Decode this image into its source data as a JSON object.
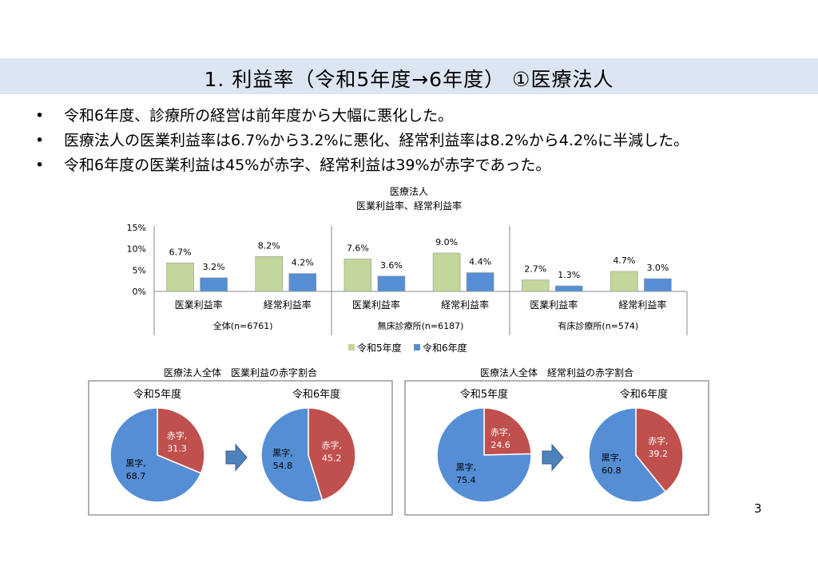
{
  "title": "1. 利益率（令和5年度→6年度） ①医療法人",
  "bullets": [
    "令和6年度、診療所の経営は前年度から大幅に悪化した。",
    "医療法人の医業利益率は6.7%から3.2%に悪化、経常利益率は8.2%から4.2%に半減した。",
    "令和6年度の医業利益は45%が赤字、経常利益は39%が赤字であった。"
  ],
  "page_number": "3",
  "colors": {
    "r5": "#c3d69b",
    "r6": "#558ed5",
    "red": "#c0504d",
    "blue": "#558ed5",
    "band": "#dce6f2"
  },
  "chart_data": [
    {
      "type": "bar",
      "title": "医療法人",
      "subtitle": "医業利益率、経常利益率",
      "ylim": [
        0,
        15
      ],
      "yticks": [
        "0%",
        "5%",
        "10%",
        "15%"
      ],
      "legend_position": "bottom",
      "groups": [
        "全体(n=6761)",
        "無床診療所(n=6187)",
        "有床診療所(n=574)"
      ],
      "categories": [
        "医業利益率",
        "経常利益率",
        "医業利益率",
        "経常利益率",
        "医業利益率",
        "経常利益率"
      ],
      "series": [
        {
          "name": "令和5年度",
          "values": [
            6.7,
            8.2,
            7.6,
            9.0,
            2.7,
            4.7
          ]
        },
        {
          "name": "令和6年度",
          "values": [
            3.2,
            4.2,
            3.6,
            4.4,
            1.3,
            3.0
          ]
        }
      ]
    },
    {
      "type": "pie",
      "title": "医療法人全体　医業利益の赤字割合",
      "pies": [
        {
          "label": "令和5年度",
          "slices": [
            {
              "name": "赤字",
              "value": 31.3
            },
            {
              "name": "黒字",
              "value": 68.7
            }
          ]
        },
        {
          "label": "令和6年度",
          "slices": [
            {
              "name": "赤字",
              "value": 45.2
            },
            {
              "name": "黒字",
              "value": 54.8
            }
          ]
        }
      ]
    },
    {
      "type": "pie",
      "title": "医療法人全体　経常利益の赤字割合",
      "pies": [
        {
          "label": "令和5年度",
          "slices": [
            {
              "name": "赤字",
              "value": 24.6
            },
            {
              "name": "黒字",
              "value": 75.4
            }
          ]
        },
        {
          "label": "令和6年度",
          "slices": [
            {
              "name": "赤字",
              "value": 39.2
            },
            {
              "name": "黒字",
              "value": 60.8
            }
          ]
        }
      ]
    }
  ]
}
